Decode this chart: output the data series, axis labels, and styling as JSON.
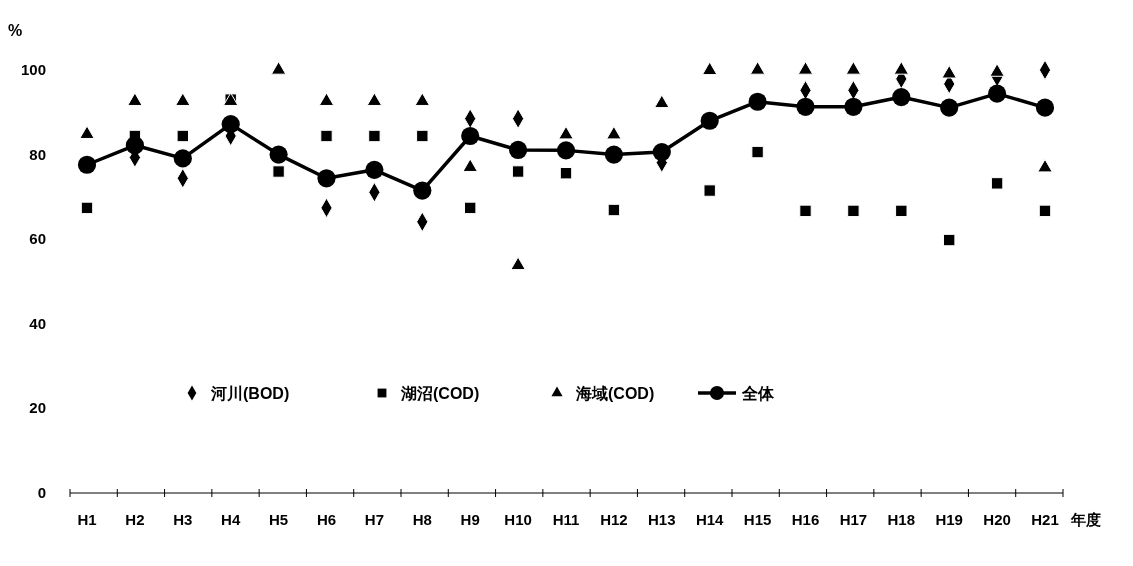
{
  "chart_data": {
    "type": "scatter",
    "ylabel": "%",
    "xlabel": "年度",
    "categories": [
      "H1",
      "H2",
      "H3",
      "H4",
      "H5",
      "H6",
      "H7",
      "H8",
      "H9",
      "H10",
      "H11",
      "H12",
      "H13",
      "H14",
      "H15",
      "H16",
      "H17",
      "H18",
      "H19",
      "H20",
      "H21"
    ],
    "ylim": [
      0,
      100
    ],
    "yticks": [
      0,
      20,
      40,
      60,
      80,
      100
    ],
    "grid": false,
    "legend": "bottom",
    "series": [
      {
        "name": "河川(BOD)",
        "marker": "diamond",
        "color": "#000000",
        "values": [
          null,
          79.3,
          74.4,
          84.4,
          null,
          67.4,
          71.1,
          64.1,
          88.5,
          88.5,
          null,
          null,
          78.1,
          null,
          null,
          95.2,
          95.2,
          97.9,
          96.7,
          98.3,
          100
        ]
      },
      {
        "name": "湖沼(COD)",
        "marker": "square",
        "color": "#000000",
        "values": [
          67.4,
          84.4,
          84.4,
          93,
          76,
          84.4,
          84.4,
          84.4,
          67.4,
          76,
          75.6,
          66.9,
          null,
          71.5,
          80.6,
          66.7,
          66.7,
          66.7,
          59.8,
          73.2,
          66.7
        ]
      },
      {
        "name": "海域(COD)",
        "marker": "triangle",
        "color": "#000000",
        "values": [
          84.8,
          92.6,
          92.6,
          92.6,
          100,
          92.6,
          92.6,
          92.6,
          77,
          53.8,
          84.7,
          84.7,
          92.1,
          99.9,
          100,
          100,
          100,
          100,
          99.1,
          99.5,
          76.9
        ]
      },
      {
        "name": "全体",
        "type": "line",
        "marker": "circle",
        "color": "#000000",
        "values": [
          77.6,
          82.2,
          79.1,
          87.2,
          80,
          74.4,
          76.4,
          71.5,
          84.4,
          81.1,
          81,
          80,
          80.6,
          88,
          92.5,
          91.3,
          91.3,
          93.6,
          91.1,
          94.4,
          91.1
        ]
      }
    ]
  }
}
